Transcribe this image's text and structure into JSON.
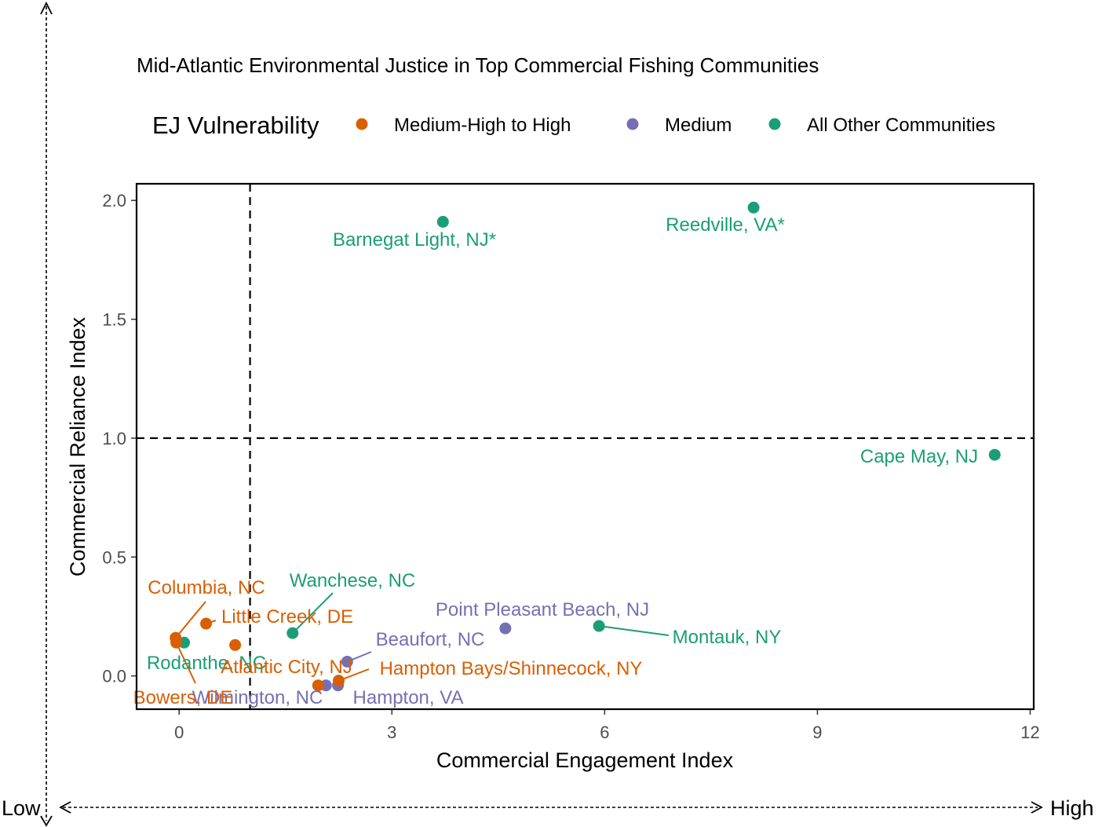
{
  "chart_data": {
    "type": "scatter",
    "title": "Mid-Atlantic Environmental Justice in Top Commercial Fishing Communities",
    "xlabel": "Commercial Engagement Index",
    "ylabel": "Commercial Reliance Index",
    "xlim": [
      -0.6,
      12.05
    ],
    "ylim": [
      -0.14,
      2.07
    ],
    "xticks": [
      0,
      3,
      6,
      9,
      12
    ],
    "yticks": [
      0.0,
      0.5,
      1.0,
      1.5,
      2.0
    ],
    "xtick_labels": [
      "0",
      "3",
      "6",
      "9",
      "12"
    ],
    "ytick_labels": [
      "0.0",
      "0.5",
      "1.0",
      "1.5",
      "2.0"
    ],
    "reference_lines": {
      "x": 1,
      "y": 1
    },
    "grid": false,
    "legend": {
      "title": "EJ Vulnerability",
      "position": "top",
      "entries": [
        {
          "label": "Medium-High to High",
          "color": "#D95F02"
        },
        {
          "label": "Medium",
          "color": "#7570B3"
        },
        {
          "label": "All Other Communities",
          "color": "#1B9E77"
        }
      ]
    },
    "points": [
      {
        "label": "Barnegat Light, NJ*",
        "x": 3.72,
        "y": 1.91,
        "group": 2
      },
      {
        "label": "Reedville, VA*",
        "x": 8.1,
        "y": 1.97,
        "group": 2
      },
      {
        "label": "Cape May, NJ",
        "x": 11.5,
        "y": 0.93,
        "group": 2
      },
      {
        "label": "Wanchese, NC",
        "x": 1.6,
        "y": 0.18,
        "group": 2
      },
      {
        "label": "Montauk, NY",
        "x": 5.92,
        "y": 0.21,
        "group": 2
      },
      {
        "label": "Rodanthe, NC",
        "x": 0.07,
        "y": 0.14,
        "group": 2
      },
      {
        "label": "Point Pleasant Beach, NJ",
        "x": 4.6,
        "y": 0.2,
        "group": 1
      },
      {
        "label": "Beaufort, NC",
        "x": 2.37,
        "y": 0.06,
        "group": 1
      },
      {
        "label": "Wilmington, NC",
        "x": 2.07,
        "y": -0.04,
        "group": 1
      },
      {
        "label": "Hampton, VA",
        "x": 2.24,
        "y": -0.04,
        "group": 1
      },
      {
        "label": "Columbia, NC",
        "x": -0.05,
        "y": 0.16,
        "group": 0
      },
      {
        "label": "Little Creek, DE",
        "x": 0.38,
        "y": 0.22,
        "group": 0
      },
      {
        "label": "Atlantic City, NJ",
        "x": 0.79,
        "y": 0.13,
        "group": 0
      },
      {
        "label": "Bowers, DE",
        "x": -0.04,
        "y": 0.14,
        "group": 0
      },
      {
        "label": "Hampton Bays/Shinnecock, NY",
        "x": 2.25,
        "y": -0.02,
        "group": 0
      },
      {
        "label": "",
        "x": 1.96,
        "y": -0.04,
        "group": 0
      }
    ],
    "outer_axis": {
      "low": "Low",
      "high": "High"
    }
  }
}
